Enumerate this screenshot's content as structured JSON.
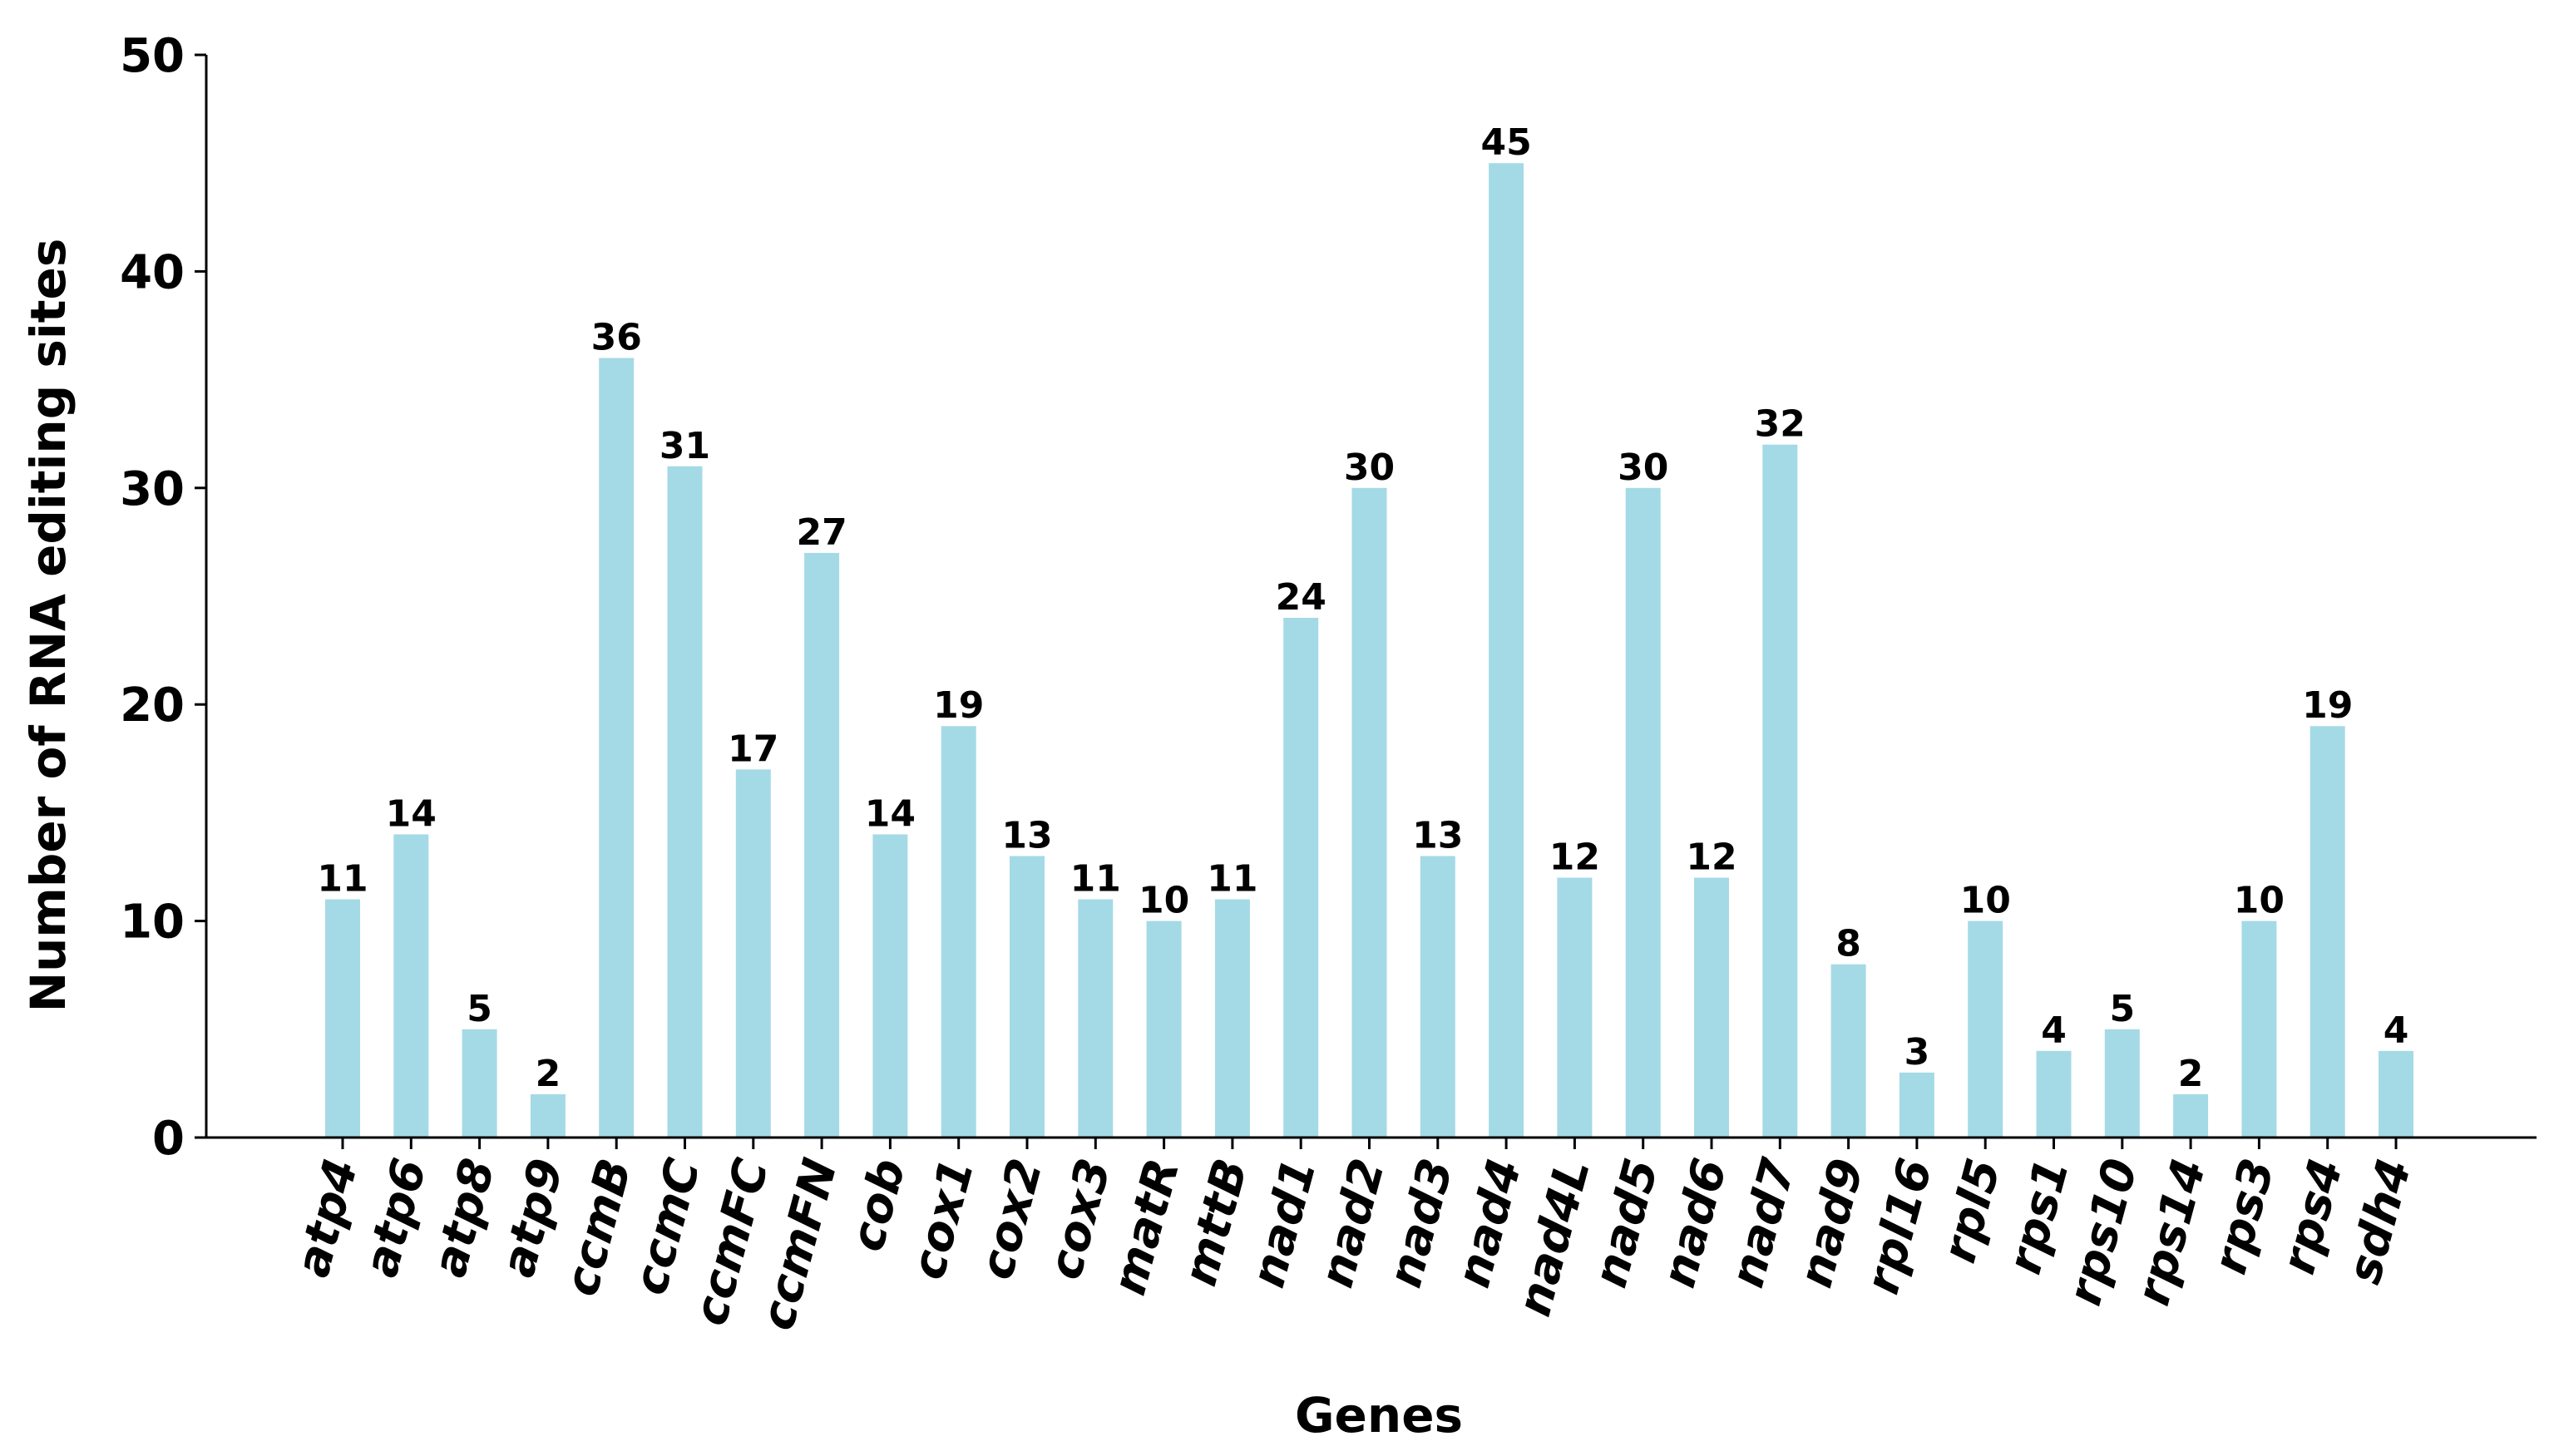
{
  "chart_data": {
    "type": "bar",
    "title": "",
    "xlabel": "Genes",
    "ylabel": "Number of RNA editing sites",
    "ylim": [
      0,
      50
    ],
    "yticks": [
      0,
      10,
      20,
      30,
      40,
      50
    ],
    "grid": false,
    "bar_color": "#a4dae6",
    "categories": [
      "atp4",
      "atp6",
      "atp8",
      "atp9",
      "ccmB",
      "ccmC",
      "ccmFC",
      "ccmFN",
      "cob",
      "cox1",
      "cox2",
      "cox3",
      "matR",
      "mttB",
      "nad1",
      "nad2",
      "nad3",
      "nad4",
      "nad4L",
      "nad5",
      "nad6",
      "nad7",
      "nad9",
      "rpl16",
      "rpl5",
      "rps1",
      "rps10",
      "rps14",
      "rps3",
      "rps4",
      "sdh4"
    ],
    "values": [
      11,
      14,
      5,
      2,
      36,
      31,
      17,
      27,
      14,
      19,
      13,
      11,
      10,
      11,
      24,
      30,
      13,
      45,
      12,
      30,
      12,
      32,
      8,
      3,
      10,
      4,
      5,
      2,
      10,
      19,
      4
    ]
  }
}
